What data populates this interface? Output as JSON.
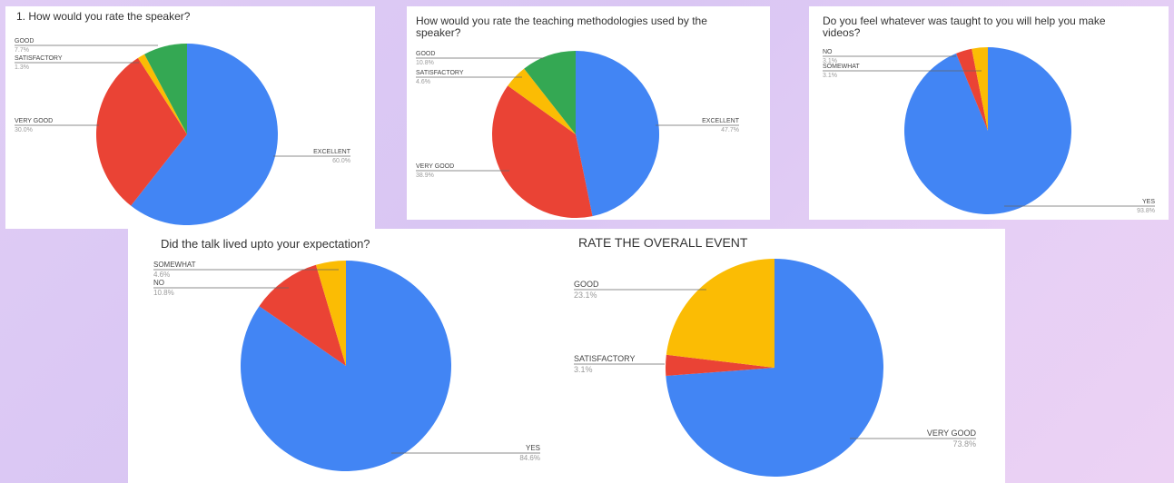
{
  "colors": {
    "blue": "#4285f4",
    "red": "#ea4335",
    "yellow": "#fbbc04",
    "green": "#34a853"
  },
  "chart_data": [
    {
      "type": "pie",
      "title": "1. How would you rate the speaker?",
      "slices": [
        {
          "label": "EXCELLENT",
          "pct_text": "60.0%",
          "value": 60.0,
          "color": "#4285f4"
        },
        {
          "label": "VERY GOOD",
          "pct_text": "30.0%",
          "value": 30.0,
          "color": "#ea4335"
        },
        {
          "label": "SATISFACTORY",
          "pct_text": "1.3%",
          "value": 1.3,
          "color": "#fbbc04"
        },
        {
          "label": "GOOD",
          "pct_text": "7.7%",
          "value": 7.7,
          "color": "#34a853"
        }
      ]
    },
    {
      "type": "pie",
      "title": "How would you rate the teaching methodologies used by the speaker?",
      "slices": [
        {
          "label": "EXCELLENT",
          "pct_text": "47.7%",
          "value": 47.7,
          "color": "#4285f4"
        },
        {
          "label": "VERY GOOD",
          "pct_text": "38.9%",
          "value": 38.9,
          "color": "#ea4335"
        },
        {
          "label": "SATISFACTORY",
          "pct_text": "4.6%",
          "value": 4.6,
          "color": "#fbbc04"
        },
        {
          "label": "GOOD",
          "pct_text": "10.8%",
          "value": 10.8,
          "color": "#34a853"
        }
      ]
    },
    {
      "type": "pie",
      "title": "Do you feel whatever was taught to you will help you make videos?",
      "slices": [
        {
          "label": "YES",
          "pct_text": "93.8%",
          "value": 93.8,
          "color": "#4285f4"
        },
        {
          "label": "NO",
          "pct_text": "3.1%",
          "value": 3.1,
          "color": "#ea4335"
        },
        {
          "label": "SOMEWHAT",
          "pct_text": "3.1%",
          "value": 3.1,
          "color": "#fbbc04"
        }
      ]
    },
    {
      "type": "pie",
      "title": "Did the talk lived upto your expectation?",
      "slices": [
        {
          "label": "YES",
          "pct_text": "84.6%",
          "value": 84.6,
          "color": "#4285f4"
        },
        {
          "label": "NO",
          "pct_text": "10.8%",
          "value": 10.8,
          "color": "#ea4335"
        },
        {
          "label": "SOMEWHAT",
          "pct_text": "4.6%",
          "value": 4.6,
          "color": "#fbbc04"
        }
      ]
    },
    {
      "type": "pie",
      "title": "RATE THE OVERALL EVENT",
      "slices": [
        {
          "label": "VERY GOOD",
          "pct_text": "73.8%",
          "value": 73.8,
          "color": "#4285f4"
        },
        {
          "label": "SATISFACTORY",
          "pct_text": "3.1%",
          "value": 3.1,
          "color": "#ea4335"
        },
        {
          "label": "GOOD",
          "pct_text": "23.1%",
          "value": 23.1,
          "color": "#fbbc04"
        }
      ]
    }
  ]
}
